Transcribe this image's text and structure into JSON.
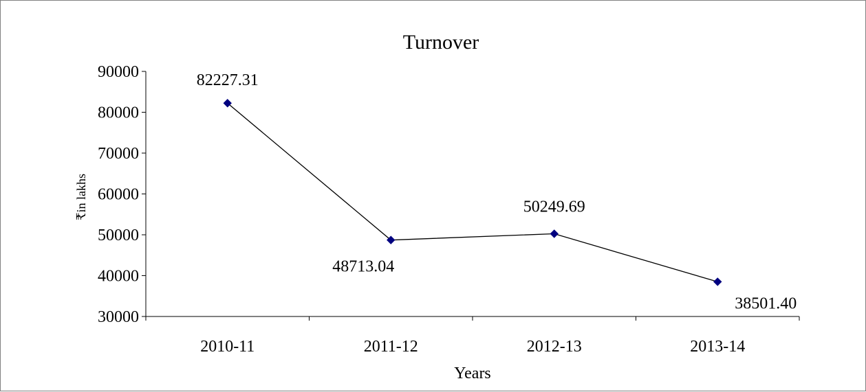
{
  "chart_data": {
    "type": "line",
    "title": "Turnover",
    "xlabel": "Years",
    "ylabel": "₹in lakhs",
    "categories": [
      "2010-11",
      "2011-12",
      "2012-13",
      "2013-14"
    ],
    "series": [
      {
        "values": [
          82227.31,
          48713.04,
          50249.69,
          38501.4
        ],
        "labels": [
          "82227.31",
          "48713.04",
          "50249.69",
          "38501.40"
        ],
        "color": "#000080",
        "line_color": "#000000",
        "marker": "diamond"
      }
    ],
    "ylim": [
      30000,
      90000
    ],
    "yticks": [
      30000,
      40000,
      50000,
      60000,
      70000,
      80000,
      90000
    ],
    "grid": false,
    "legend": "none"
  }
}
